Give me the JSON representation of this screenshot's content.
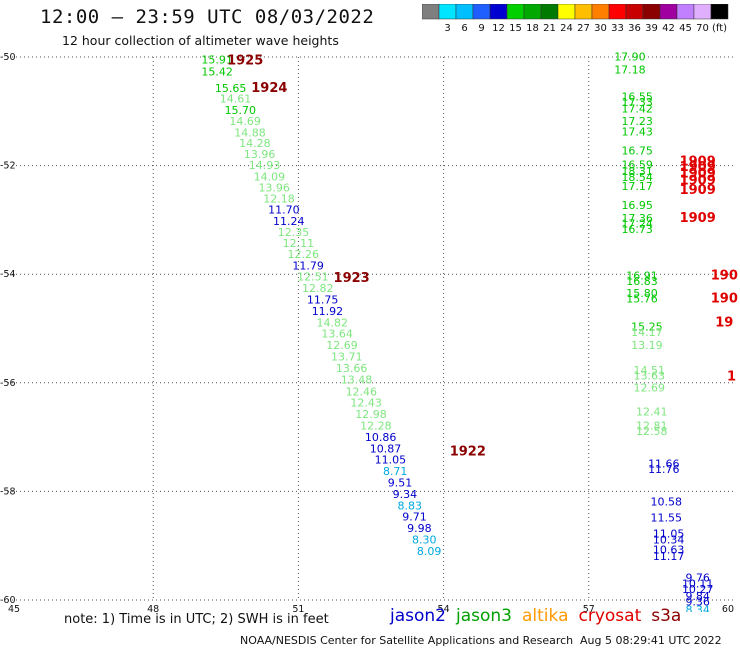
{
  "header": {
    "title": "12:00 – 23:59 UTC 08/03/2022",
    "subtitle": "12 hour collection of altimeter wave heights"
  },
  "colorbar": {
    "bins": [
      {
        "color": "#7f7f7f",
        "label": ""
      },
      {
        "color": "#00e5ff",
        "label": "3"
      },
      {
        "color": "#00bfff",
        "label": "6"
      },
      {
        "color": "#1f5fff",
        "label": "9"
      },
      {
        "color": "#0000d0",
        "label": "12"
      },
      {
        "color": "#00d000",
        "label": "15"
      },
      {
        "color": "#00a800",
        "label": "18"
      },
      {
        "color": "#007a00",
        "label": "21"
      },
      {
        "color": "#ffff00",
        "label": "24"
      },
      {
        "color": "#ffbf00",
        "label": "27"
      },
      {
        "color": "#ff7f00",
        "label": "30"
      },
      {
        "color": "#ff0000",
        "label": "33"
      },
      {
        "color": "#c80000",
        "label": "36"
      },
      {
        "color": "#8b0000",
        "label": "39"
      },
      {
        "color": "#a000a0",
        "label": "42"
      },
      {
        "color": "#c080ff",
        "label": "45"
      },
      {
        "color": "#e0b0ff",
        "label": "70"
      },
      {
        "color": "#000000",
        "label": "(ft)"
      }
    ]
  },
  "chart_data": {
    "type": "scatter",
    "title": "12:00 – 23:59 UTC 08/03/2022",
    "subtitle": "12 hour collection of altimeter wave heights",
    "xlim": [
      45,
      60
    ],
    "ylim": [
      -60,
      -50
    ],
    "xticks": [
      "45",
      "48",
      "51",
      "54",
      "57",
      "60"
    ],
    "yticks": [
      {
        "value": -50,
        "label": "-50"
      },
      {
        "value": -52,
        "label": "-52"
      },
      {
        "value": -54,
        "label": "-54"
      },
      {
        "value": -56,
        "label": "-56"
      },
      {
        "value": -58,
        "label": "-58"
      },
      {
        "value": -60,
        "label": "-60"
      }
    ],
    "grid": true,
    "colors": {
      "green": "#00c800",
      "lightgreen": "#7fe67f",
      "blue": "#0000cc",
      "cyan": "#00a8e0",
      "red": "#e00000",
      "darkred": "#8b0000"
    },
    "points": [
      {
        "x": 49.32,
        "y": -50.12,
        "v": "15.91",
        "c": "green"
      },
      {
        "x": 49.32,
        "y": -50.34,
        "v": "15.42",
        "c": "green"
      },
      {
        "x": 49.6,
        "y": -50.64,
        "v": "15.65",
        "c": "green"
      },
      {
        "x": 49.7,
        "y": -50.84,
        "v": "14.61",
        "c": "lightgreen"
      },
      {
        "x": 49.8,
        "y": -51.05,
        "v": "15.70",
        "c": "green"
      },
      {
        "x": 49.9,
        "y": -51.25,
        "v": "14.69",
        "c": "lightgreen"
      },
      {
        "x": 50.0,
        "y": -51.46,
        "v": "14.88",
        "c": "lightgreen"
      },
      {
        "x": 50.1,
        "y": -51.66,
        "v": "14.28",
        "c": "lightgreen"
      },
      {
        "x": 50.2,
        "y": -51.86,
        "v": "13.96",
        "c": "lightgreen"
      },
      {
        "x": 50.3,
        "y": -52.06,
        "v": "14.93",
        "c": "lightgreen"
      },
      {
        "x": 50.4,
        "y": -52.27,
        "v": "14.09",
        "c": "lightgreen"
      },
      {
        "x": 50.5,
        "y": -52.48,
        "v": "13.96",
        "c": "lightgreen"
      },
      {
        "x": 50.6,
        "y": -52.68,
        "v": "12.18",
        "c": "lightgreen"
      },
      {
        "x": 50.7,
        "y": -52.88,
        "v": "11.70",
        "c": "blue"
      },
      {
        "x": 50.8,
        "y": -53.09,
        "v": "11.24",
        "c": "blue"
      },
      {
        "x": 50.9,
        "y": -53.3,
        "v": "12.35",
        "c": "lightgreen"
      },
      {
        "x": 51.0,
        "y": -53.5,
        "v": "12.11",
        "c": "lightgreen"
      },
      {
        "x": 51.1,
        "y": -53.7,
        "v": "12.26",
        "c": "lightgreen"
      },
      {
        "x": 51.2,
        "y": -53.91,
        "v": "11.79",
        "c": "blue"
      },
      {
        "x": 51.3,
        "y": -54.12,
        "v": "12.51",
        "c": "lightgreen"
      },
      {
        "x": 51.4,
        "y": -54.33,
        "v": "12.82",
        "c": "lightgreen"
      },
      {
        "x": 51.5,
        "y": -54.54,
        "v": "11.75",
        "c": "blue"
      },
      {
        "x": 51.6,
        "y": -54.75,
        "v": "11.92",
        "c": "blue"
      },
      {
        "x": 51.7,
        "y": -54.96,
        "v": "14.82",
        "c": "lightgreen"
      },
      {
        "x": 51.8,
        "y": -55.17,
        "v": "13.64",
        "c": "lightgreen"
      },
      {
        "x": 51.9,
        "y": -55.38,
        "v": "12.69",
        "c": "lightgreen"
      },
      {
        "x": 52.0,
        "y": -55.59,
        "v": "13.71",
        "c": "lightgreen"
      },
      {
        "x": 52.1,
        "y": -55.8,
        "v": "13.66",
        "c": "lightgreen"
      },
      {
        "x": 52.2,
        "y": -56.01,
        "v": "13.48",
        "c": "lightgreen"
      },
      {
        "x": 52.3,
        "y": -56.23,
        "v": "12.46",
        "c": "lightgreen"
      },
      {
        "x": 52.4,
        "y": -56.44,
        "v": "12.43",
        "c": "lightgreen"
      },
      {
        "x": 52.5,
        "y": -56.65,
        "v": "12.98",
        "c": "lightgreen"
      },
      {
        "x": 52.6,
        "y": -56.86,
        "v": "12.28",
        "c": "lightgreen"
      },
      {
        "x": 52.7,
        "y": -57.07,
        "v": "10.86",
        "c": "blue"
      },
      {
        "x": 52.8,
        "y": -57.28,
        "v": "10.87",
        "c": "blue"
      },
      {
        "x": 52.9,
        "y": -57.49,
        "v": "11.05",
        "c": "blue"
      },
      {
        "x": 53.0,
        "y": -57.7,
        "v": "8.71",
        "c": "cyan"
      },
      {
        "x": 53.1,
        "y": -57.91,
        "v": "9.51",
        "c": "blue"
      },
      {
        "x": 53.2,
        "y": -58.12,
        "v": "9.34",
        "c": "blue"
      },
      {
        "x": 53.3,
        "y": -58.33,
        "v": "8.83",
        "c": "cyan"
      },
      {
        "x": 53.4,
        "y": -58.54,
        "v": "9.71",
        "c": "blue"
      },
      {
        "x": 53.5,
        "y": -58.75,
        "v": "9.98",
        "c": "blue"
      },
      {
        "x": 53.6,
        "y": -58.96,
        "v": "8.30",
        "c": "cyan"
      },
      {
        "x": 53.7,
        "y": -59.17,
        "v": "8.09",
        "c": "cyan"
      },
      {
        "x": 57.85,
        "y": -50.06,
        "v": "17.90",
        "c": "green"
      },
      {
        "x": 57.85,
        "y": -50.3,
        "v": "17.18",
        "c": "green"
      },
      {
        "x": 58.0,
        "y": -50.8,
        "v": "16.55",
        "c": "green"
      },
      {
        "x": 58.0,
        "y": -50.9,
        "v": "17.33",
        "c": "green"
      },
      {
        "x": 58.0,
        "y": -51.02,
        "v": "17.42",
        "c": "green"
      },
      {
        "x": 58.0,
        "y": -51.25,
        "v": "17.23",
        "c": "green"
      },
      {
        "x": 58.0,
        "y": -51.45,
        "v": "17.43",
        "c": "green"
      },
      {
        "x": 58.0,
        "y": -51.8,
        "v": "16.75",
        "c": "green"
      },
      {
        "x": 58.0,
        "y": -52.05,
        "v": "16.59",
        "c": "green"
      },
      {
        "x": 58.0,
        "y": -52.17,
        "v": "18.31",
        "c": "green"
      },
      {
        "x": 58.0,
        "y": -52.28,
        "v": "18.54",
        "c": "green"
      },
      {
        "x": 58.0,
        "y": -52.45,
        "v": "17.17",
        "c": "green"
      },
      {
        "x": 58.0,
        "y": -52.8,
        "v": "16.95",
        "c": "green"
      },
      {
        "x": 58.0,
        "y": -53.04,
        "v": "17.36",
        "c": "green"
      },
      {
        "x": 58.0,
        "y": -53.14,
        "v": "17.24",
        "c": "green"
      },
      {
        "x": 58.0,
        "y": -53.24,
        "v": "16.73",
        "c": "green"
      },
      {
        "x": 58.1,
        "y": -54.1,
        "v": "16.91",
        "c": "green"
      },
      {
        "x": 58.1,
        "y": -54.2,
        "v": "16.83",
        "c": "green"
      },
      {
        "x": 58.1,
        "y": -54.42,
        "v": "15.80",
        "c": "green"
      },
      {
        "x": 58.1,
        "y": -54.52,
        "v": "15.76",
        "c": "green"
      },
      {
        "x": 58.2,
        "y": -55.04,
        "v": "15.25",
        "c": "green"
      },
      {
        "x": 58.2,
        "y": -55.14,
        "v": "14.17",
        "c": "lightgreen"
      },
      {
        "x": 58.2,
        "y": -55.38,
        "v": "13.19",
        "c": "lightgreen"
      },
      {
        "x": 58.25,
        "y": -55.84,
        "v": "14.51",
        "c": "lightgreen"
      },
      {
        "x": 58.25,
        "y": -55.94,
        "v": "13.63",
        "c": "lightgreen"
      },
      {
        "x": 58.25,
        "y": -56.16,
        "v": "12.69",
        "c": "lightgreen"
      },
      {
        "x": 58.3,
        "y": -56.6,
        "v": "12.41",
        "c": "lightgreen"
      },
      {
        "x": 58.3,
        "y": -56.86,
        "v": "12.81",
        "c": "lightgreen"
      },
      {
        "x": 58.3,
        "y": -56.96,
        "v": "12.58",
        "c": "lightgreen"
      },
      {
        "x": 58.55,
        "y": -57.56,
        "v": "11.66",
        "c": "blue"
      },
      {
        "x": 58.55,
        "y": -57.66,
        "v": "11.76",
        "c": "blue"
      },
      {
        "x": 58.6,
        "y": -58.26,
        "v": "10.58",
        "c": "blue"
      },
      {
        "x": 58.6,
        "y": -58.55,
        "v": "11.55",
        "c": "blue"
      },
      {
        "x": 58.65,
        "y": -58.85,
        "v": "11.05",
        "c": "blue"
      },
      {
        "x": 58.65,
        "y": -58.96,
        "v": "10.34",
        "c": "blue"
      },
      {
        "x": 58.65,
        "y": -59.14,
        "v": "10.63",
        "c": "blue"
      },
      {
        "x": 58.65,
        "y": -59.26,
        "v": "11.17",
        "c": "blue"
      },
      {
        "x": 59.25,
        "y": -59.66,
        "v": "9.76",
        "c": "blue"
      },
      {
        "x": 59.25,
        "y": -59.77,
        "v": "10.11",
        "c": "blue"
      },
      {
        "x": 59.25,
        "y": -59.87,
        "v": "10.27",
        "c": "blue"
      },
      {
        "x": 59.25,
        "y": -60.0,
        "v": "9.84",
        "c": "blue"
      },
      {
        "x": 59.25,
        "y": -60.1,
        "v": "9.36",
        "c": "blue"
      },
      {
        "x": 59.25,
        "y": -60.25,
        "v": "8.34",
        "c": "cyan"
      }
    ],
    "pass_labels": [
      {
        "x": 49.9,
        "y": -50.14,
        "v": "1925",
        "c": "darkred"
      },
      {
        "x": 50.4,
        "y": -50.64,
        "v": "1924",
        "c": "darkred"
      },
      {
        "x": 52.1,
        "y": -54.14,
        "v": "1923",
        "c": "darkred"
      },
      {
        "x": 54.5,
        "y": -57.34,
        "v": "1922",
        "c": "darkred"
      },
      {
        "x": 59.25,
        "y": -52.0,
        "v": "1909",
        "c": "red"
      },
      {
        "x": 59.25,
        "y": -52.1,
        "v": "1909",
        "c": "red"
      },
      {
        "x": 59.25,
        "y": -52.22,
        "v": "1909",
        "c": "red"
      },
      {
        "x": 59.25,
        "y": -52.35,
        "v": "1909",
        "c": "red"
      },
      {
        "x": 59.25,
        "y": -52.52,
        "v": "1909",
        "c": "red"
      },
      {
        "x": 59.25,
        "y": -53.04,
        "v": "1909",
        "c": "red"
      },
      {
        "x": 59.8,
        "y": -54.1,
        "v": "190",
        "c": "red"
      },
      {
        "x": 59.8,
        "y": -54.52,
        "v": "190",
        "c": "red"
      },
      {
        "x": 59.8,
        "y": -54.96,
        "v": "19",
        "c": "red"
      },
      {
        "x": 59.95,
        "y": -55.96,
        "v": "1",
        "c": "red"
      }
    ]
  },
  "footer": {
    "note": "note:  1) Time is in UTC; 2) SWH is in feet",
    "sources": [
      {
        "name": "jason2",
        "color": "#0000cc"
      },
      {
        "name": "jason3",
        "color": "#00a000"
      },
      {
        "name": "altika",
        "color": "#ff9900"
      },
      {
        "name": "cryosat",
        "color": "#e00000"
      },
      {
        "name": "s3a",
        "color": "#8b0000"
      }
    ],
    "credit": "NOAA/NESDIS Center for Satellite Applications and Research",
    "timestamp": "Aug  5 08:29:41 UTC 2022"
  }
}
